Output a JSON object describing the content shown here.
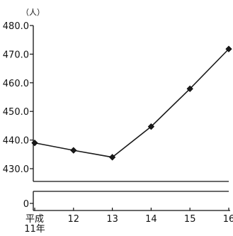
{
  "chart_data": {
    "type": "line",
    "unit_label": "（人）",
    "x": [
      "平成\n11年",
      "12",
      "13",
      "14",
      "15",
      "16"
    ],
    "series": [
      {
        "values": [
          439.0,
          436.4,
          434.0,
          444.7,
          457.9,
          471.8
        ]
      }
    ],
    "yticks": [
      "480.0",
      "470.0",
      "460.0",
      "450.0",
      "440.0",
      "430.0"
    ],
    "ylim": [
      430,
      480
    ],
    "axis_break": true,
    "zero_label": "0",
    "grid": false,
    "marker": "diamond",
    "colors": {
      "line": "#1a1a1a",
      "marker": "#1a1a1a",
      "axis": "#111111"
    }
  }
}
